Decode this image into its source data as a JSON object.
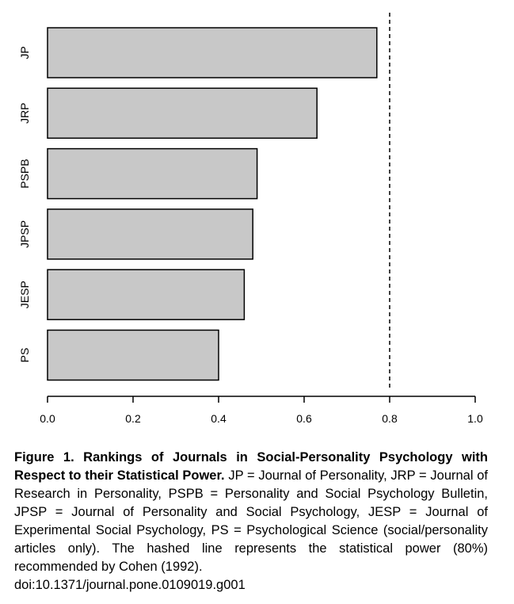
{
  "chart_data": {
    "type": "bar",
    "orientation": "horizontal",
    "categories": [
      "JP",
      "JRP",
      "PSPB",
      "JPSP",
      "JESP",
      "PS"
    ],
    "values": [
      0.77,
      0.63,
      0.49,
      0.48,
      0.46,
      0.4
    ],
    "xlim": [
      0.0,
      1.0
    ],
    "xticks": [
      "0.0",
      "0.2",
      "0.4",
      "0.6",
      "0.8",
      "1.0"
    ],
    "reference_line": {
      "x": 0.8,
      "style": "dashed"
    },
    "bar_color": "#c8c8c8",
    "grid": false
  },
  "caption": {
    "title": "Figure 1. Rankings of Journals in Social-Personality Psychology with Respect to their Statistical Power.",
    "body": " JP = Journal of Personality, JRP = Journal of Research in Personality, PSPB = Personality and Social Psychology Bulletin, JPSP = Journal of Personality and Social Psychology, JESP = Journal of Experimental Social Psychology, PS = Psychological Science (social/personality articles only). The hashed line represents the statistical power (80%) recommended by Cohen (1992).",
    "doi": "doi:10.1371/journal.pone.0109019.g001"
  }
}
